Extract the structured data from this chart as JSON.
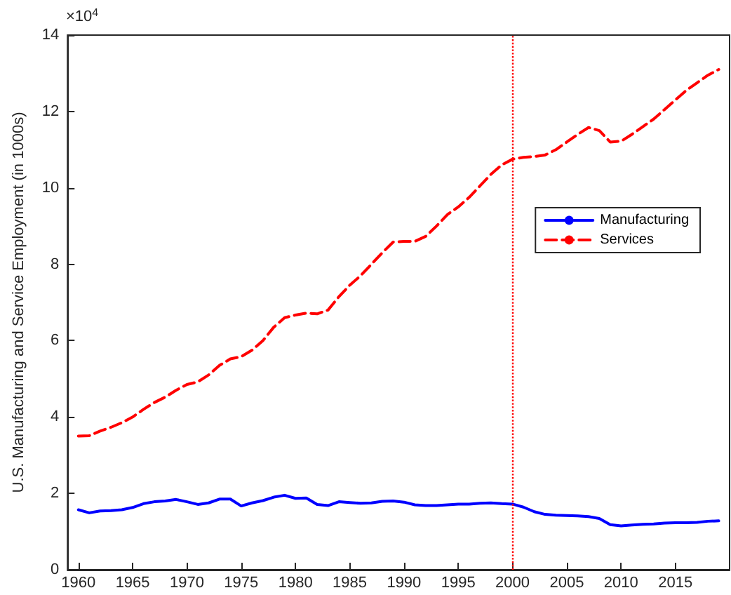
{
  "chart_data": {
    "type": "line",
    "ylabel": "U.S. Manufacturing and Service Employment (in 1000s)",
    "annotations": [
      "×10$^{4}$"
    ],
    "x": [
      1960,
      1961,
      1962,
      1963,
      1964,
      1965,
      1966,
      1967,
      1968,
      1969,
      1970,
      1971,
      1972,
      1973,
      1974,
      1975,
      1976,
      1977,
      1978,
      1979,
      1980,
      1981,
      1982,
      1983,
      1984,
      1985,
      1986,
      1987,
      1988,
      1989,
      1990,
      1991,
      1992,
      1993,
      1994,
      1995,
      1996,
      1997,
      1998,
      1999,
      2000,
      2001,
      2002,
      2003,
      2004,
      2005,
      2006,
      2007,
      2008,
      2009,
      2010,
      2011,
      2012,
      2013,
      2014,
      2015,
      2016,
      2017,
      2018,
      2019
    ],
    "series": [
      {
        "name": "Manufacturing",
        "color": "#0000ff",
        "line_style": "solid",
        "values": [
          1.57,
          1.49,
          1.54,
          1.55,
          1.57,
          1.63,
          1.73,
          1.78,
          1.8,
          1.84,
          1.78,
          1.71,
          1.75,
          1.85,
          1.85,
          1.67,
          1.75,
          1.81,
          1.9,
          1.95,
          1.87,
          1.88,
          1.71,
          1.68,
          1.78,
          1.76,
          1.74,
          1.75,
          1.79,
          1.8,
          1.77,
          1.7,
          1.68,
          1.68,
          1.7,
          1.72,
          1.72,
          1.74,
          1.75,
          1.73,
          1.72,
          1.64,
          1.52,
          1.45,
          1.43,
          1.42,
          1.41,
          1.39,
          1.34,
          1.18,
          1.15,
          1.17,
          1.19,
          1.2,
          1.22,
          1.23,
          1.23,
          1.24,
          1.27,
          1.28
        ]
      },
      {
        "name": "Services",
        "color": "#ff0000",
        "line_style": "dashed",
        "values": [
          3.5,
          3.51,
          3.63,
          3.73,
          3.85,
          4.0,
          4.2,
          4.38,
          4.52,
          4.7,
          4.85,
          4.92,
          5.1,
          5.35,
          5.52,
          5.58,
          5.75,
          6.0,
          6.35,
          6.6,
          6.67,
          6.72,
          6.7,
          6.8,
          7.15,
          7.45,
          7.7,
          8.0,
          8.3,
          8.58,
          8.6,
          8.6,
          8.73,
          9.0,
          9.3,
          9.5,
          9.75,
          10.05,
          10.35,
          10.6,
          10.75,
          10.8,
          10.82,
          10.86,
          11.0,
          11.2,
          11.4,
          11.58,
          11.5,
          11.2,
          11.22,
          11.4,
          11.6,
          11.8,
          12.05,
          12.3,
          12.55,
          12.75,
          12.95,
          13.1
        ]
      }
    ],
    "xlim": [
      1959,
      2020
    ],
    "xticks": [
      1960,
      1965,
      1970,
      1975,
      1980,
      1985,
      1990,
      1995,
      2000,
      2005,
      2010,
      2015
    ],
    "ylim": [
      0,
      14
    ],
    "yticks": [
      0,
      2,
      4,
      6,
      8,
      10,
      12,
      14
    ],
    "ref_lines": [
      {
        "axis": "x",
        "value": 2000,
        "color": "#ff0000",
        "line_style": "dotted"
      }
    ],
    "legend": "right",
    "grid": false,
    "marker": "none"
  }
}
